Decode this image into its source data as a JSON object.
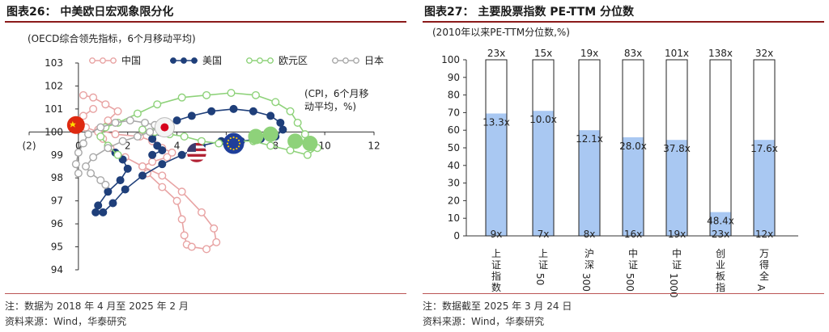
{
  "left": {
    "title": "图表26：  中美欧日宏观象限分化",
    "note": "注：数据为 2018 年 4 月至 2025 年 2 月",
    "source": "资料来源：Wind，华泰研究"
  },
  "right": {
    "title": "图表27：  主要股票指数 PE-TTM 分位数",
    "note": "注：数据截至 2025 年 3 月 24 日",
    "source": "资料来源：Wind，华泰研究"
  },
  "colors": {
    "china": "#e8a3a3",
    "us": "#1f3f7a",
    "eurozone": "#8ed27a",
    "japan": "#a8a8a8",
    "bar_fill": "#a9c8f2",
    "bar_border": "#222222",
    "rule": "#8b1a1a"
  },
  "chart_data": [
    {
      "type": "scatter",
      "title": "",
      "ylabel": "(OECD综合领先指标，6个月移动平均)",
      "xlabel": "(CPI，6个月移动平均，%)",
      "xlim": [
        -2,
        12
      ],
      "ylim": [
        94,
        103
      ],
      "x_tick_labels": [
        "(2)",
        "0",
        "2",
        "4",
        "6",
        "8",
        "10",
        "12"
      ],
      "y_tick_labels": [
        "94",
        "95",
        "96",
        "97",
        "98",
        "99",
        "100",
        "101",
        "102",
        "103"
      ],
      "legend_position": "top",
      "series": [
        {
          "name": "中国",
          "color_key": "china",
          "marker": "hollow",
          "points": [
            [
              0.2,
              101.6
            ],
            [
              0.6,
              101.5
            ],
            [
              1.1,
              101.2
            ],
            [
              1.6,
              100.9
            ],
            [
              1.2,
              100.5
            ],
            [
              0.8,
              100.1
            ],
            [
              1.5,
              99.9
            ],
            [
              2.5,
              99.8
            ],
            [
              3.0,
              99.6
            ],
            [
              3.4,
              99.3
            ],
            [
              3.8,
              99.1
            ],
            [
              3.6,
              98.9
            ],
            [
              3.0,
              98.7
            ],
            [
              2.6,
              98.5
            ],
            [
              2.8,
              98.2
            ],
            [
              3.4,
              97.6
            ],
            [
              4.0,
              97.0
            ],
            [
              4.2,
              96.2
            ],
            [
              4.3,
              95.5
            ],
            [
              4.4,
              95.1
            ],
            [
              4.6,
              95.0
            ],
            [
              5.2,
              94.9
            ],
            [
              5.6,
              95.2
            ],
            [
              5.5,
              95.8
            ],
            [
              5.0,
              96.5
            ],
            [
              4.2,
              97.4
            ],
            [
              3.4,
              98.1
            ],
            [
              2.6,
              98.5
            ],
            [
              1.9,
              98.9
            ],
            [
              1.3,
              99.3
            ],
            [
              1.0,
              99.7
            ],
            [
              0.8,
              100.0
            ],
            [
              0.3,
              100.2
            ],
            [
              -0.1,
              100.4
            ],
            [
              0.2,
              100.7
            ],
            [
              0.6,
              101.0
            ]
          ]
        },
        {
          "name": "美国",
          "color_key": "us",
          "marker": "filled",
          "points": [
            [
              1.5,
              99.1
            ],
            [
              1.8,
              98.8
            ],
            [
              2.0,
              98.4
            ],
            [
              1.7,
              97.9
            ],
            [
              1.2,
              97.4
            ],
            [
              0.8,
              96.8
            ],
            [
              0.7,
              96.5
            ],
            [
              1.0,
              96.5
            ],
            [
              1.4,
              96.9
            ],
            [
              1.9,
              97.5
            ],
            [
              2.6,
              98.1
            ],
            [
              3.4,
              98.6
            ],
            [
              4.2,
              99.0
            ],
            [
              5.0,
              99.4
            ],
            [
              5.8,
              99.6
            ],
            [
              6.6,
              99.6
            ],
            [
              7.4,
              99.7
            ],
            [
              8.0,
              99.8
            ],
            [
              8.3,
              100.1
            ],
            [
              8.2,
              100.4
            ],
            [
              7.8,
              100.7
            ],
            [
              7.1,
              100.9
            ],
            [
              6.3,
              101.0
            ],
            [
              5.4,
              100.9
            ],
            [
              4.6,
              100.7
            ],
            [
              4.0,
              100.5
            ],
            [
              3.6,
              100.3
            ],
            [
              3.3,
              100.0
            ],
            [
              3.0,
              99.7
            ],
            [
              3.2,
              99.4
            ],
            [
              3.4,
              99.2
            ],
            [
              3.0,
              99.0
            ]
          ]
        },
        {
          "name": "欧元区",
          "color_key": "eurozone",
          "marker": "hollow",
          "points": [
            [
              1.6,
              99.0
            ],
            [
              1.2,
              99.4
            ],
            [
              0.9,
              99.8
            ],
            [
              1.1,
              100.2
            ],
            [
              1.6,
              100.4
            ],
            [
              2.4,
              100.8
            ],
            [
              3.2,
              101.2
            ],
            [
              4.2,
              101.5
            ],
            [
              5.2,
              101.6
            ],
            [
              6.2,
              101.7
            ],
            [
              7.2,
              101.6
            ],
            [
              8.0,
              101.3
            ],
            [
              8.6,
              100.9
            ],
            [
              8.9,
              100.4
            ],
            [
              9.2,
              99.9
            ],
            [
              9.5,
              99.6
            ],
            [
              9.7,
              99.3
            ],
            [
              9.3,
              99.0
            ],
            [
              8.6,
              99.2
            ],
            [
              7.8,
              99.4
            ],
            [
              7.1,
              99.6
            ],
            [
              6.4,
              99.6
            ],
            [
              5.7,
              99.5
            ],
            [
              5.0,
              99.6
            ],
            [
              4.3,
              99.8
            ],
            [
              3.7,
              99.9
            ],
            [
              3.1,
              100.0
            ],
            [
              2.6,
              100.1
            ]
          ]
        },
        {
          "name": "日本",
          "color_key": "japan",
          "marker": "hollow",
          "points": [
            [
              0.0,
              98.2
            ],
            [
              -0.1,
              98.6
            ],
            [
              0.0,
              99.1
            ],
            [
              0.2,
              99.5
            ],
            [
              0.4,
              99.9
            ],
            [
              0.9,
              100.2
            ],
            [
              1.5,
              100.4
            ],
            [
              2.1,
              100.5
            ],
            [
              2.7,
              100.4
            ],
            [
              3.1,
              100.3
            ],
            [
              3.3,
              100.2
            ],
            [
              2.9,
              100.0
            ],
            [
              2.4,
              99.8
            ],
            [
              1.8,
              99.6
            ],
            [
              1.2,
              99.3
            ],
            [
              0.6,
              98.9
            ],
            [
              0.3,
              98.5
            ],
            [
              0.5,
              98.2
            ],
            [
              0.9,
              97.9
            ],
            [
              1.1,
              97.7
            ]
          ]
        }
      ],
      "latest": [
        {
          "country": "china",
          "x": -0.1,
          "y": 100.3,
          "flag": "china-flag-marker"
        },
        {
          "country": "us",
          "x": 4.8,
          "y": 99.1,
          "flag": "us-flag-marker"
        },
        {
          "country": "eurozone",
          "x": 6.3,
          "y": 99.5,
          "flag": "eu-flag-marker"
        },
        {
          "country": "japan",
          "x": 3.5,
          "y": 100.2,
          "flag": "japan-flag-marker"
        }
      ]
    },
    {
      "type": "bar",
      "title": "",
      "ylabel": "(2010年以来PE-TTM分位数,%)",
      "ylim": [
        0,
        100
      ],
      "y_tick_labels": [
        "0",
        "10",
        "20",
        "30",
        "40",
        "50",
        "60",
        "70",
        "80",
        "90",
        "100"
      ],
      "categories": [
        "上证指数",
        "上证50",
        "沪深300",
        "中证500",
        "中证1000",
        "创业板指",
        "万得全A"
      ],
      "category_labels": [
        [
          "上",
          "证",
          "指",
          "数"
        ],
        [
          "上",
          "证",
          "50"
        ],
        [
          "沪",
          "深",
          "300"
        ],
        [
          "中",
          "证",
          "500"
        ],
        [
          "中",
          "证",
          "1000"
        ],
        [
          "创",
          "业",
          "板",
          "指"
        ],
        [
          "万",
          "得",
          "全",
          "A"
        ]
      ],
      "values": [
        69.5,
        71,
        60,
        56,
        54.5,
        13.5,
        54.5
      ],
      "value_labels": [
        "13.3x",
        "10.0x",
        "12.1x",
        "28.0x",
        "37.8x",
        "48.4x",
        "17.6x"
      ],
      "max_labels": [
        "23x",
        "15x",
        "19x",
        "83x",
        "101x",
        "138x",
        "32x"
      ],
      "min_labels": [
        "9x",
        "7x",
        "8x",
        "16x",
        "19x",
        "23x",
        "12x"
      ]
    }
  ]
}
